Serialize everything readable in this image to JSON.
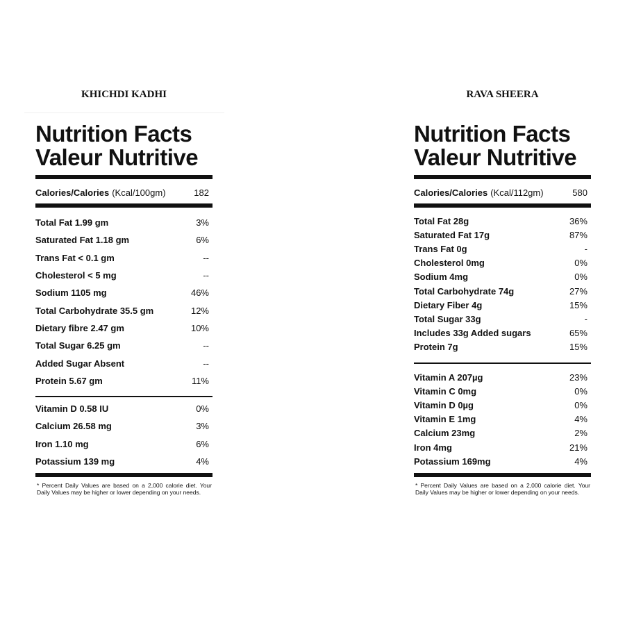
{
  "panels": [
    {
      "title": "KHICHDI KADHI",
      "heading": [
        "Nutrition Facts",
        "Valeur Nutritive"
      ],
      "calories": {
        "label": "Calories/Calories",
        "unit": "(Kcal/100gm)",
        "value": "182"
      },
      "nutrients": [
        [
          "Total Fat 1.99 gm",
          "3%"
        ],
        [
          "Saturated Fat 1.18 gm",
          "6%"
        ],
        [
          "Trans Fat < 0.1 gm",
          "--"
        ],
        [
          "Cholesterol < 5 mg",
          "--"
        ],
        [
          "Sodium 1105 mg",
          "46%"
        ],
        [
          "Total Carbohydrate 35.5 gm",
          "12%"
        ],
        [
          "Dietary fibre 2.47 gm",
          "10%"
        ],
        [
          "Total Sugar 6.25 gm",
          "--"
        ],
        [
          "Added Sugar Absent",
          "--"
        ],
        [
          "Protein 5.67 gm",
          "11%"
        ]
      ],
      "vitamins": [
        [
          "Vitamin D 0.58 IU",
          "0%"
        ],
        [
          "Calcium 26.58 mg",
          "3%"
        ],
        [
          "Iron 1.10 mg",
          "6%"
        ],
        [
          "Potassium 139 mg",
          "4%"
        ]
      ],
      "footnote": "* Percent Daily Values are based on a 2,000 calorie diet. Your Daily Values may be higher or lower depending on your needs."
    },
    {
      "title": "RAVA SHEERA",
      "heading": [
        "Nutrition Facts",
        "Valeur Nutritive"
      ],
      "calories": {
        "label": "Calories/Calories",
        "unit": "(Kcal/112gm)",
        "value": "580"
      },
      "nutrients": [
        [
          "Total Fat 28g",
          "36%"
        ],
        [
          "Saturated Fat 17g",
          "87%"
        ],
        [
          "Trans Fat 0g",
          "-"
        ],
        [
          "Cholesterol 0mg",
          "0%"
        ],
        [
          "Sodium 4mg",
          "0%"
        ],
        [
          "Total Carbohydrate 74g",
          "27%"
        ],
        [
          "Dietary Fiber 4g",
          "15%"
        ],
        [
          "Total Sugar 33g",
          "-"
        ],
        [
          "Includes 33g Added sugars",
          "65%"
        ],
        [
          "Protein 7g",
          "15%"
        ]
      ],
      "vitamins": [
        [
          "Vitamin A 207µg",
          "23%"
        ],
        [
          "Vitamin C 0mg",
          "0%"
        ],
        [
          "Vitamin D 0µg",
          "0%"
        ],
        [
          "Vitamin E 1mg",
          "4%"
        ],
        [
          "Calcium 23mg",
          "2%"
        ],
        [
          "Iron 4mg",
          "21%"
        ],
        [
          "Potassium 169mg",
          "4%"
        ]
      ],
      "footnote": "* Percent Daily Values are based on a 2,000 calorie diet. Your Daily Values may be higher or lower depending on your needs."
    }
  ]
}
